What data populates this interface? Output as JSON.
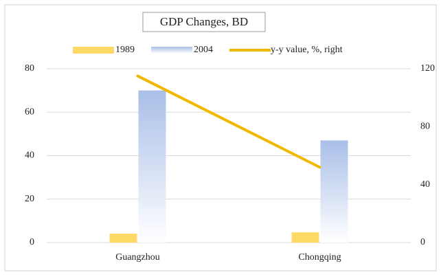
{
  "chart_data": {
    "type": "bar",
    "title": "GDP Changes, BD",
    "categories": [
      "Guangzhou",
      "Chongqing"
    ],
    "series": [
      {
        "name": "1989",
        "type": "bar",
        "color": "#ffd966",
        "values": [
          4.1,
          4.7
        ]
      },
      {
        "name": "2004",
        "type": "bar",
        "color": "#a9bfe8",
        "values": [
          70,
          47
        ]
      },
      {
        "name": "y-y value, %, right",
        "type": "line",
        "axis": "y2",
        "color": "#f2b800",
        "values": [
          115,
          52
        ]
      }
    ],
    "ylim": [
      0,
      80
    ],
    "yticks": [
      0,
      20,
      40,
      60,
      80
    ],
    "y2lim": [
      0,
      120
    ],
    "y2ticks": [
      0,
      40,
      80,
      120
    ],
    "grid": true,
    "legend": "top"
  }
}
